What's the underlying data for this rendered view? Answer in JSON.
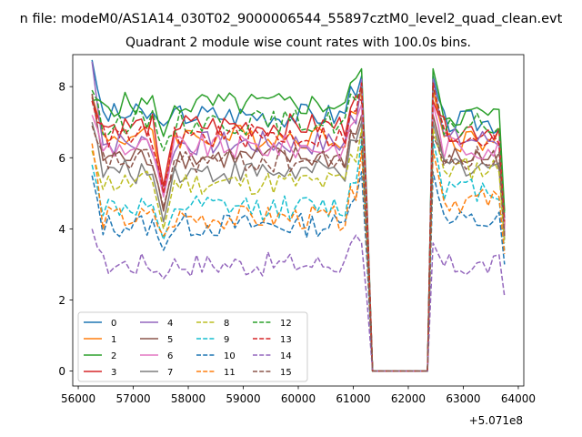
{
  "figure": {
    "suptitle": "n file: modeM0/AS1A14_030T02_9000006544_55897cztM0_level2_quad_clean.evt",
    "title": "Quadrant 2 module wise count rates with 100.0s bins.",
    "offset_label": "+5.071e8"
  },
  "chart_data": {
    "type": "line",
    "title": "Quadrant 2 module wise count rates with 100.0s bins.",
    "xlabel": "",
    "ylabel": "",
    "x_offset": 507100000,
    "xlim": [
      55900,
      64100
    ],
    "ylim": [
      -0.42,
      8.9
    ],
    "xticks": [
      56000,
      57000,
      58000,
      59000,
      60000,
      61000,
      62000,
      63000,
      64000
    ],
    "xtick_labels": [
      "56000",
      "57000",
      "58000",
      "59000",
      "60000",
      "61000",
      "62000",
      "63000",
      "64000"
    ],
    "yticks": [
      0,
      2,
      4,
      6,
      8
    ],
    "ytick_labels": [
      "0",
      "2",
      "4",
      "6",
      "8"
    ],
    "grid": false,
    "legend_position": "lower-left",
    "legend_columns": 4,
    "x_start": 56250,
    "x_step": 100,
    "gap": {
      "from": 61350,
      "to": 62350,
      "value": 0
    },
    "segment1_end": 61250,
    "segment2_start": 62350,
    "segment2_end": 63750,
    "series": [
      {
        "name": "0",
        "color": "#1f77b4",
        "dash": "solid",
        "level1": 7.2,
        "level2": 7.0,
        "start": 8.75,
        "dip": 6.9,
        "peak": 8.3,
        "end": 4.3
      },
      {
        "name": "1",
        "color": "#ff7f0e",
        "dash": "solid",
        "level1": 6.6,
        "level2": 6.5,
        "start": 7.75,
        "dip": 5.0,
        "peak": 7.9,
        "end": 4.0
      },
      {
        "name": "2",
        "color": "#2ca02c",
        "dash": "solid",
        "level1": 7.5,
        "level2": 7.2,
        "start": 7.6,
        "dip": 6.6,
        "peak": 8.5,
        "end": 4.5
      },
      {
        "name": "3",
        "color": "#d62728",
        "dash": "solid",
        "level1": 6.9,
        "level2": 6.8,
        "start": 7.7,
        "dip": 5.2,
        "peak": 7.6,
        "end": 4.1
      },
      {
        "name": "4",
        "color": "#9467bd",
        "dash": "solid",
        "level1": 6.4,
        "level2": 6.5,
        "start": 8.7,
        "dip": 5.0,
        "peak": 8.2,
        "end": 3.9
      },
      {
        "name": "5",
        "color": "#8c564b",
        "dash": "solid",
        "level1": 6.0,
        "level2": 6.0,
        "start": 7.8,
        "dip": 4.5,
        "peak": 7.2,
        "end": 3.8
      },
      {
        "name": "6",
        "color": "#e377c2",
        "dash": "solid",
        "level1": 6.3,
        "level2": 6.3,
        "start": 7.2,
        "dip": 4.9,
        "peak": 7.5,
        "end": 4.0
      },
      {
        "name": "7",
        "color": "#7f7f7f",
        "dash": "solid",
        "level1": 5.6,
        "level2": 5.8,
        "start": 7.0,
        "dip": 4.2,
        "peak": 7.0,
        "end": 3.7
      },
      {
        "name": "8",
        "color": "#bcbd22",
        "dash": "dashed",
        "level1": 5.3,
        "level2": 5.7,
        "start": 6.2,
        "dip": 4.0,
        "peak": 6.8,
        "end": 3.6
      },
      {
        "name": "9",
        "color": "#17becf",
        "dash": "dashed",
        "level1": 4.6,
        "level2": 5.1,
        "start": 5.8,
        "dip": 3.7,
        "peak": 6.5,
        "end": 3.4
      },
      {
        "name": "10",
        "color": "#1f77b4",
        "dash": "dashed",
        "level1": 4.1,
        "level2": 4.2,
        "start": 5.5,
        "dip": 3.4,
        "peak": 5.6,
        "end": 3.0
      },
      {
        "name": "11",
        "color": "#ff7f0e",
        "dash": "dashed",
        "level1": 4.3,
        "level2": 4.8,
        "start": 6.4,
        "dip": 3.8,
        "peak": 6.2,
        "end": 3.3
      },
      {
        "name": "12",
        "color": "#2ca02c",
        "dash": "dashed",
        "level1": 7.0,
        "level2": 6.9,
        "start": 7.9,
        "dip": 6.2,
        "peak": 8.0,
        "end": 4.4
      },
      {
        "name": "13",
        "color": "#d62728",
        "dash": "dashed",
        "level1": 6.6,
        "level2": 6.6,
        "start": 7.6,
        "dip": 5.0,
        "peak": 8.1,
        "end": 4.2
      },
      {
        "name": "14",
        "color": "#9467bd",
        "dash": "dashed",
        "level1": 3.0,
        "level2": 2.95,
        "start": 4.0,
        "dip": 2.6,
        "peak": 3.6,
        "end": 2.1
      },
      {
        "name": "15",
        "color": "#8c564b",
        "dash": "dashed",
        "level1": 5.9,
        "level2": 6.0,
        "start": 6.9,
        "dip": 4.6,
        "peak": 6.6,
        "end": 3.8
      }
    ]
  }
}
